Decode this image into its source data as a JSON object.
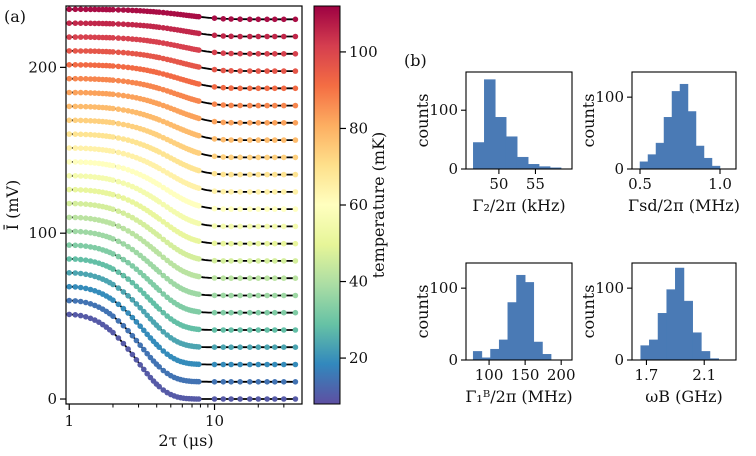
{
  "panel_labels": {
    "a": "(a)",
    "b": "(b)"
  },
  "colorbar": {
    "label": "temperature (mK)",
    "ticks": [
      "20",
      "40",
      "60",
      "80",
      "100"
    ],
    "range": [
      8,
      112
    ],
    "colormap": "Spectral_r"
  },
  "chart_data": [
    {
      "type": "scatter",
      "panel": "(a)",
      "xlabel": "2τ (μs)",
      "ylabel": "Ī (mV)",
      "xscale": "log",
      "xlim": [
        0.95,
        40
      ],
      "ylim": [
        -3,
        237
      ],
      "xticks": [
        "1",
        "10"
      ],
      "yticks": [
        "0",
        "100",
        "200"
      ],
      "temperature_range_mK": [
        10,
        110
      ],
      "curves": 23,
      "y_start_range": [
        51,
        235
      ],
      "y_end_range": [
        0,
        229
      ],
      "x_min": 1.0,
      "x_max": 36.0,
      "fit_line_color": "#000000",
      "grid": false
    },
    {
      "type": "bar",
      "panel": "(b)",
      "xlabel": "Γ₂/2π (kHz)",
      "ylabel": "counts",
      "bin_edges": [
        46.5,
        48,
        49.5,
        51,
        52.5,
        54,
        55.5,
        57,
        58.5
      ],
      "values": [
        45,
        152,
        88,
        55,
        20,
        8,
        4,
        2
      ],
      "xticks": [
        "50",
        "55"
      ],
      "yticks": [
        "0",
        "100"
      ],
      "xlim": [
        45.5,
        60
      ],
      "ylim": [
        0,
        165
      ]
    },
    {
      "type": "bar",
      "panel": "(b)",
      "xlabel": "Γsd/2π (MHz)",
      "ylabel": "counts",
      "bin_edges": [
        0.5,
        0.55,
        0.6,
        0.65,
        0.7,
        0.75,
        0.8,
        0.85,
        0.9,
        0.95,
        1.0
      ],
      "values": [
        10,
        20,
        36,
        72,
        108,
        118,
        80,
        32,
        15,
        4
      ],
      "xticks": [
        "0.5",
        "1.0"
      ],
      "yticks": [
        "0",
        "100"
      ],
      "xlim": [
        0.45,
        1.1
      ],
      "ylim": [
        0,
        135
      ]
    },
    {
      "type": "bar",
      "panel": "(b)",
      "xlabel": "Γ₁ᴮ/2π (MHz)",
      "ylabel": "counts",
      "bin_edges": [
        78,
        90,
        102,
        114,
        126,
        138,
        150,
        162,
        174,
        186
      ],
      "values": [
        12,
        3,
        15,
        28,
        80,
        118,
        108,
        25,
        8
      ],
      "xticks": [
        "100",
        "150",
        "200"
      ],
      "yticks": [
        "0",
        "100"
      ],
      "xlim": [
        68,
        215
      ],
      "ylim": [
        0,
        135
      ]
    },
    {
      "type": "bar",
      "panel": "(b)",
      "xlabel": "ωB (GHz)",
      "ylabel": "counts",
      "bin_edges": [
        1.66,
        1.72,
        1.78,
        1.84,
        1.9,
        1.96,
        2.02,
        2.08,
        2.14,
        2.2
      ],
      "values": [
        20,
        28,
        65,
        98,
        128,
        82,
        38,
        12,
        2
      ],
      "xticks": [
        "1.7",
        "2.1"
      ],
      "yticks": [
        "0",
        "100"
      ],
      "xlim": [
        1.6,
        2.32
      ],
      "ylim": [
        0,
        135
      ]
    }
  ]
}
